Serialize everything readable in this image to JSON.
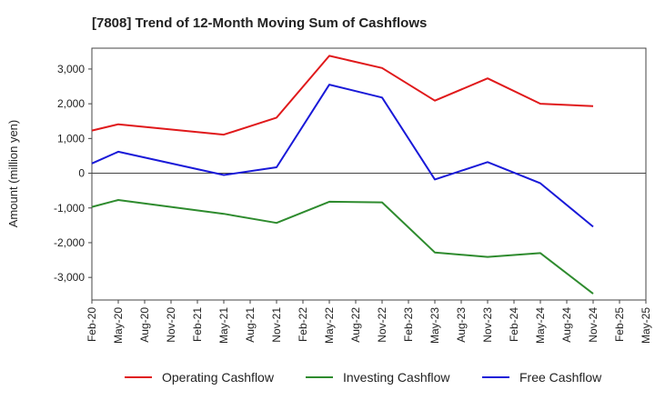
{
  "chart_data": {
    "type": "line",
    "title": "[7808]  Trend of 12-Month Moving Sum of Cashflows",
    "xlabel": "",
    "ylabel": "Amount (million yen)",
    "categories": [
      "Feb-20",
      "May-20",
      "Aug-20",
      "Nov-20",
      "Feb-21",
      "May-21",
      "Aug-21",
      "Nov-21",
      "Feb-22",
      "May-22",
      "Aug-22",
      "Nov-22",
      "Feb-23",
      "May-23",
      "Aug-23",
      "Nov-23",
      "Feb-24",
      "May-24",
      "Aug-24",
      "Nov-24",
      "Feb-25",
      "May-25"
    ],
    "ylim": [
      -3650,
      3600
    ],
    "yticks": [
      3000,
      2000,
      1000,
      0,
      -1000,
      -2000,
      -3000
    ],
    "ytick_labels": [
      "3,000",
      "2,000",
      "1,000",
      "0",
      "-1,000",
      "-2,000",
      "-3,000"
    ],
    "grid": true,
    "legend_position": "bottom",
    "series": [
      {
        "name": "Operating Cashflow",
        "color": "#e0191b",
        "values": [
          1230,
          1410,
          null,
          null,
          null,
          1110,
          null,
          1600,
          null,
          3380,
          null,
          3030,
          null,
          2090,
          null,
          2730,
          null,
          2000,
          null,
          1930,
          null,
          null
        ]
      },
      {
        "name": "Investing Cashflow",
        "color": "#2e8b2e",
        "values": [
          -970,
          -770,
          null,
          null,
          null,
          -1170,
          null,
          -1430,
          null,
          -820,
          null,
          -840,
          null,
          -2280,
          null,
          -2410,
          null,
          -2300,
          null,
          -3470,
          null,
          null
        ]
      },
      {
        "name": "Free Cashflow",
        "color": "#1919d8",
        "values": [
          280,
          620,
          null,
          null,
          null,
          -50,
          null,
          170,
          null,
          2550,
          null,
          2180,
          null,
          -180,
          null,
          320,
          null,
          -290,
          null,
          -1540,
          null,
          null
        ]
      }
    ]
  }
}
